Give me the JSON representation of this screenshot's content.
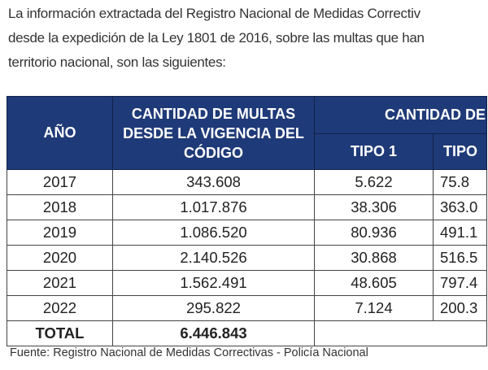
{
  "intro": {
    "lines": [
      "La información extractada del Registro Nacional de Medidas Correctiv",
      "desde la expedición de la Ley 1801 de 2016, sobre las multas que han",
      "territorio nacional, son las siguientes:"
    ]
  },
  "table": {
    "headers": {
      "year": "AÑO",
      "fines_line1": "CANTIDAD  DE  MULTAS",
      "fines_line2": "DESDE LA VIGENCIA DEL",
      "fines_line3": "CÓDIGO",
      "group": "CANTIDAD DE",
      "type1": "TIPO 1",
      "type2": "TIPO"
    },
    "rows": [
      {
        "year": "2017",
        "fines": "343.608",
        "type1": "5.622",
        "type2": "75.8"
      },
      {
        "year": "2018",
        "fines": "1.017.876",
        "type1": "38.306",
        "type2": "363.0"
      },
      {
        "year": "2019",
        "fines": "1.086.520",
        "type1": "80.936",
        "type2": "491.1"
      },
      {
        "year": "2020",
        "fines": "2.140.526",
        "type1": "30.868",
        "type2": "516.5"
      },
      {
        "year": "2021",
        "fines": "1.562.491",
        "type1": "48.605",
        "type2": "797.4"
      },
      {
        "year": "2022",
        "fines": "295.822",
        "type1": "7.124",
        "type2": "200.3"
      }
    ],
    "total": {
      "label": "TOTAL",
      "fines": "6.446.843"
    }
  },
  "source": "Fuente: Registro Nacional de Medidas Correctivas - Policía Nacional",
  "colors": {
    "header_bg": "#1f3a78"
  }
}
